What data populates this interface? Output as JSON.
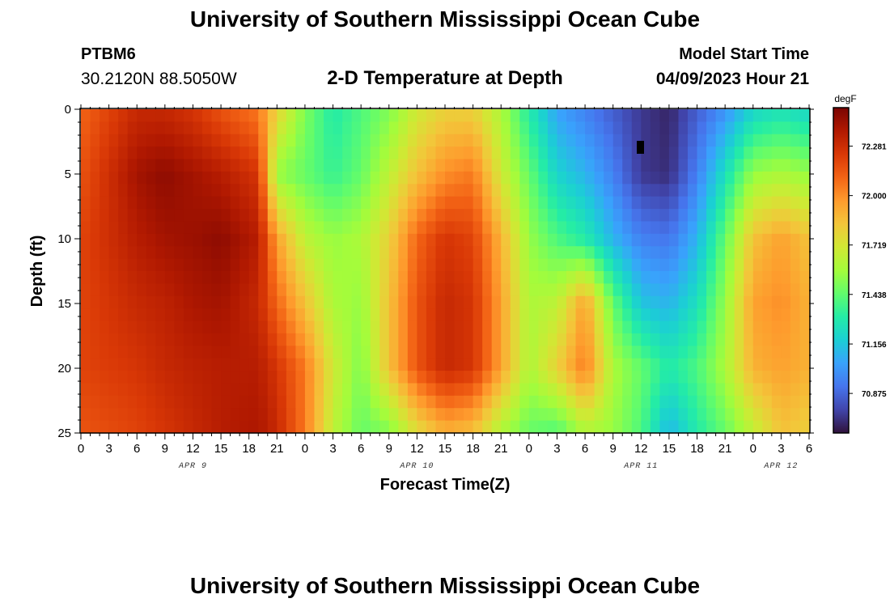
{
  "header": {
    "title": "University of Southern Mississippi Ocean Cube",
    "station": "PTBM6",
    "coordinates": "30.2120N  88.5050W",
    "subtitle": "2-D Temperature at Depth",
    "model_start_label": "Model Start Time",
    "model_start_value": "04/09/2023 Hour 21"
  },
  "footer": {
    "title": "University of Southern Mississippi Ocean Cube"
  },
  "chart_data": {
    "type": "heatmap",
    "title": "2-D Temperature at Depth",
    "xlabel": "Forecast Time(Z)",
    "ylabel": "Depth (ft)",
    "x_hours_since_apr9_00z": [
      0,
      78
    ],
    "x_tick_step_hours": 3,
    "x_tick_labels": [
      "0",
      "3",
      "6",
      "9",
      "12",
      "15",
      "18",
      "21",
      "0",
      "3",
      "6",
      "9",
      "12",
      "15",
      "18",
      "21",
      "0",
      "3",
      "6",
      "9",
      "12",
      "15",
      "18",
      "21",
      "0",
      "3",
      "6"
    ],
    "date_labels": [
      {
        "label": "APR 9",
        "hour": 12
      },
      {
        "label": "APR 10",
        "hour": 36
      },
      {
        "label": "APR 11",
        "hour": 60
      },
      {
        "label": "APR 12",
        "hour": 75
      }
    ],
    "ylim": [
      0,
      25
    ],
    "y_tick_labels": [
      "0",
      "5",
      "10",
      "15",
      "20",
      "25"
    ],
    "colorbar": {
      "unit": "degF",
      "range": [
        70.65,
        72.5
      ],
      "ticks": [
        "72.281",
        "72.000",
        "71.719",
        "71.438",
        "71.156",
        "70.875"
      ],
      "colors": [
        "#30123b",
        "#4145ab",
        "#4675ed",
        "#39a2fc",
        "#1bcfd4",
        "#24eca6",
        "#61fc6c",
        "#a4fc3b",
        "#d1e834",
        "#f3c63a",
        "#fe9b2d",
        "#f36315",
        "#d93806",
        "#b11901",
        "#7a0402"
      ]
    },
    "anchor_grid": {
      "hours": [
        0,
        6,
        9,
        12,
        15,
        19,
        21,
        24,
        27,
        30,
        33,
        36,
        39,
        42,
        45,
        48,
        51,
        54,
        57,
        60,
        63,
        66,
        69,
        72,
        75,
        78
      ],
      "depths_ft": [
        0,
        5,
        10,
        15,
        20,
        25
      ],
      "temperature_degF": [
        [
          72.1,
          72.3,
          72.3,
          72.25,
          72.15,
          72.05,
          71.8,
          71.5,
          71.3,
          71.4,
          71.5,
          71.7,
          71.8,
          71.8,
          71.6,
          71.3,
          71.05,
          70.95,
          70.85,
          70.75,
          70.7,
          70.85,
          71.0,
          71.2,
          71.25,
          71.2
        ],
        [
          72.15,
          72.4,
          72.45,
          72.4,
          72.35,
          72.25,
          71.55,
          71.45,
          71.35,
          71.45,
          71.65,
          71.85,
          72.0,
          72.05,
          71.7,
          71.45,
          71.2,
          71.1,
          70.95,
          70.75,
          70.72,
          70.95,
          71.25,
          71.55,
          71.6,
          71.55
        ],
        [
          72.2,
          72.35,
          72.4,
          72.42,
          72.45,
          72.35,
          71.95,
          71.65,
          71.55,
          71.6,
          71.8,
          72.1,
          72.25,
          72.2,
          71.9,
          71.55,
          71.4,
          71.3,
          71.1,
          70.95,
          70.92,
          71.1,
          71.45,
          71.85,
          71.95,
          71.85
        ],
        [
          72.2,
          72.3,
          72.33,
          72.38,
          72.4,
          72.3,
          72.1,
          71.85,
          71.6,
          71.55,
          71.85,
          72.15,
          72.3,
          72.25,
          71.95,
          71.6,
          71.65,
          71.95,
          71.45,
          71.15,
          71.1,
          71.25,
          71.55,
          71.95,
          72.0,
          71.9
        ],
        [
          72.2,
          72.25,
          72.3,
          72.33,
          72.35,
          72.35,
          72.25,
          72.05,
          71.7,
          71.5,
          71.85,
          72.15,
          72.3,
          72.25,
          71.95,
          71.6,
          71.8,
          72.05,
          71.6,
          71.45,
          71.3,
          71.4,
          71.6,
          71.9,
          71.95,
          71.9
        ],
        [
          72.15,
          72.2,
          72.25,
          72.3,
          72.35,
          72.38,
          72.3,
          72.05,
          71.65,
          71.45,
          71.5,
          71.75,
          71.9,
          71.85,
          71.6,
          71.45,
          71.4,
          71.6,
          71.55,
          71.4,
          71.1,
          71.3,
          71.45,
          71.65,
          71.85,
          71.8
        ]
      ]
    }
  }
}
